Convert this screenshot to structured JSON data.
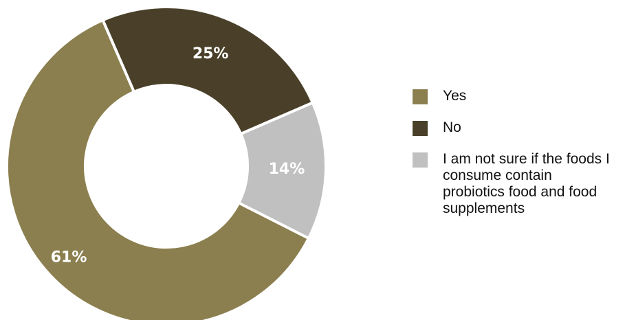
{
  "chart_data": {
    "type": "pie",
    "donut": true,
    "title": "",
    "categories": [
      "Yes",
      "No",
      "I am not sure if the foods I consume contain probiotics food and food supplements"
    ],
    "values": [
      61,
      25,
      14
    ],
    "labels": [
      "61%",
      "25%",
      "14%"
    ],
    "colors": [
      "#8b7f4f",
      "#4a4029",
      "#c0c0c0"
    ],
    "legend_position": "right"
  }
}
